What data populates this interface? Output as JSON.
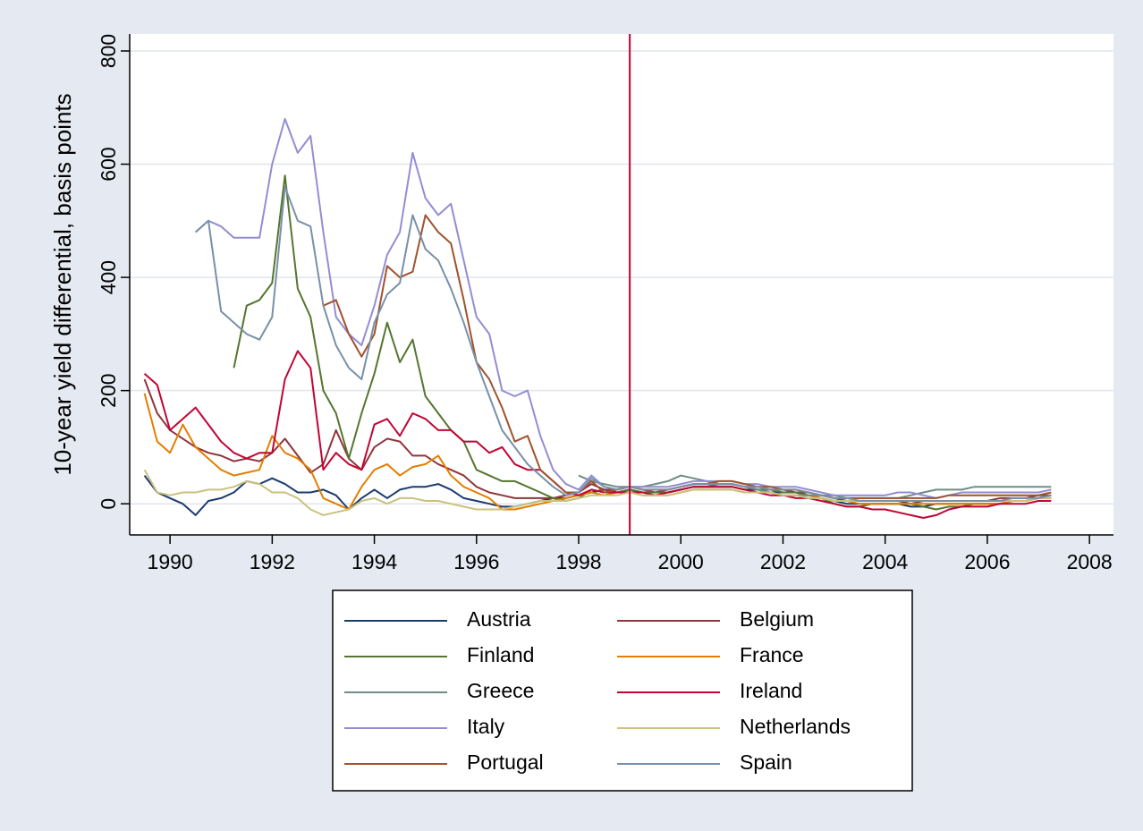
{
  "chart_data": {
    "type": "line",
    "y_label": "10-year yield differential, basis points",
    "x": [
      1989.5,
      1989.75,
      1990.0,
      1990.25,
      1990.5,
      1990.75,
      1991.0,
      1991.25,
      1991.5,
      1991.75,
      1992.0,
      1992.25,
      1992.5,
      1992.75,
      1993.0,
      1993.25,
      1993.5,
      1993.75,
      1994.0,
      1994.25,
      1994.5,
      1994.75,
      1995.0,
      1995.25,
      1995.5,
      1995.75,
      1996.0,
      1996.25,
      1996.5,
      1996.75,
      1997.0,
      1997.25,
      1997.5,
      1997.75,
      1998.0,
      1998.25,
      1998.5,
      1998.75,
      1999.0,
      1999.25,
      1999.5,
      1999.75,
      2000.0,
      2000.25,
      2000.5,
      2000.75,
      2001.0,
      2001.25,
      2001.5,
      2001.75,
      2002.0,
      2002.25,
      2002.5,
      2002.75,
      2003.0,
      2003.25,
      2003.5,
      2003.75,
      2004.0,
      2004.25,
      2004.5,
      2004.75,
      2005.0,
      2005.25,
      2005.5,
      2005.75,
      2006.0,
      2006.25,
      2006.5,
      2006.75,
      2007.0,
      2007.25
    ],
    "series": [
      {
        "name": "Austria",
        "color": "#1a3b6e",
        "values": [
          50,
          20,
          10,
          0,
          -20,
          5,
          10,
          20,
          40,
          35,
          45,
          35,
          20,
          20,
          25,
          15,
          -10,
          10,
          25,
          10,
          25,
          30,
          30,
          35,
          25,
          10,
          5,
          0,
          -5,
          -5,
          0,
          5,
          10,
          10,
          15,
          20,
          25,
          20,
          25,
          20,
          20,
          20,
          25,
          30,
          30,
          30,
          30,
          25,
          25,
          20,
          20,
          20,
          15,
          10,
          5,
          0,
          0,
          0,
          0,
          0,
          -5,
          -5,
          0,
          0,
          0,
          0,
          0,
          0,
          5,
          5,
          10,
          10
        ]
      },
      {
        "name": "Belgium",
        "color": "#90353b",
        "values": [
          220,
          160,
          130,
          115,
          100,
          90,
          85,
          75,
          80,
          75,
          90,
          115,
          85,
          55,
          70,
          130,
          80,
          60,
          100,
          115,
          110,
          85,
          85,
          70,
          60,
          50,
          30,
          20,
          15,
          10,
          10,
          10,
          10,
          15,
          20,
          35,
          25,
          25,
          30,
          25,
          20,
          25,
          30,
          35,
          35,
          35,
          35,
          30,
          30,
          25,
          25,
          20,
          20,
          15,
          10,
          5,
          5,
          5,
          5,
          5,
          0,
          5,
          5,
          5,
          5,
          5,
          5,
          10,
          10,
          10,
          15,
          15
        ]
      },
      {
        "name": "Finland",
        "color": "#55752f",
        "values": [
          null,
          null,
          null,
          null,
          null,
          null,
          null,
          240,
          350,
          360,
          390,
          580,
          380,
          330,
          200,
          160,
          80,
          160,
          230,
          320,
          250,
          290,
          190,
          160,
          130,
          110,
          60,
          50,
          40,
          40,
          30,
          20,
          10,
          5,
          10,
          25,
          20,
          20,
          25,
          20,
          20,
          20,
          25,
          30,
          30,
          35,
          35,
          30,
          25,
          25,
          20,
          20,
          15,
          10,
          0,
          -5,
          -5,
          0,
          0,
          0,
          0,
          -5,
          -10,
          -5,
          -5,
          0,
          0,
          0,
          5,
          5,
          10,
          15
        ]
      },
      {
        "name": "France",
        "color": "#e37e00",
        "values": [
          195,
          110,
          90,
          140,
          100,
          80,
          60,
          50,
          55,
          60,
          120,
          90,
          80,
          60,
          10,
          0,
          -10,
          30,
          60,
          70,
          50,
          65,
          70,
          85,
          50,
          30,
          20,
          10,
          -10,
          -10,
          -5,
          0,
          5,
          10,
          15,
          20,
          15,
          20,
          20,
          15,
          15,
          15,
          20,
          25,
          25,
          25,
          25,
          20,
          20,
          20,
          15,
          15,
          15,
          10,
          5,
          5,
          0,
          0,
          0,
          0,
          0,
          0,
          0,
          0,
          0,
          0,
          0,
          0,
          5,
          5,
          10,
          10
        ]
      },
      {
        "name": "Greece",
        "color": "#6e8e84",
        "values": [
          null,
          null,
          null,
          null,
          null,
          null,
          null,
          null,
          null,
          null,
          null,
          null,
          null,
          null,
          null,
          null,
          null,
          null,
          null,
          null,
          null,
          null,
          null,
          null,
          null,
          null,
          null,
          null,
          null,
          null,
          null,
          null,
          null,
          null,
          50,
          40,
          35,
          30,
          30,
          30,
          35,
          40,
          50,
          45,
          40,
          35,
          35,
          30,
          25,
          20,
          15,
          15,
          15,
          15,
          15,
          10,
          10,
          10,
          10,
          10,
          15,
          20,
          25,
          25,
          25,
          30,
          30,
          30,
          30,
          30,
          30,
          30
        ]
      },
      {
        "name": "Ireland",
        "color": "#c10534",
        "values": [
          230,
          210,
          130,
          150,
          170,
          140,
          110,
          90,
          80,
          90,
          90,
          220,
          270,
          240,
          60,
          90,
          70,
          60,
          140,
          150,
          120,
          160,
          150,
          130,
          130,
          110,
          110,
          90,
          100,
          70,
          60,
          60,
          40,
          20,
          15,
          25,
          20,
          20,
          20,
          20,
          15,
          20,
          25,
          30,
          30,
          30,
          30,
          25,
          20,
          15,
          15,
          10,
          10,
          5,
          0,
          -5,
          -5,
          -10,
          -10,
          -15,
          -20,
          -25,
          -20,
          -10,
          -5,
          -5,
          -5,
          0,
          0,
          0,
          5,
          5
        ]
      },
      {
        "name": "Italy",
        "color": "#938dd2",
        "values": [
          null,
          null,
          null,
          null,
          480,
          500,
          490,
          470,
          470,
          470,
          600,
          680,
          620,
          650,
          480,
          330,
          300,
          280,
          350,
          440,
          480,
          620,
          540,
          510,
          530,
          430,
          330,
          300,
          200,
          190,
          200,
          120,
          60,
          35,
          25,
          50,
          30,
          25,
          30,
          30,
          30,
          30,
          35,
          40,
          40,
          40,
          40,
          35,
          35,
          30,
          30,
          30,
          25,
          20,
          15,
          15,
          15,
          15,
          15,
          20,
          20,
          15,
          10,
          15,
          20,
          20,
          20,
          20,
          20,
          20,
          20,
          25
        ]
      },
      {
        "name": "Netherlands",
        "color": "#cac27e",
        "values": [
          60,
          20,
          15,
          20,
          20,
          25,
          25,
          30,
          40,
          35,
          20,
          20,
          10,
          -10,
          -20,
          -15,
          -10,
          5,
          10,
          0,
          10,
          10,
          5,
          5,
          0,
          -5,
          -10,
          -10,
          -10,
          -5,
          0,
          5,
          5,
          5,
          10,
          15,
          15,
          15,
          20,
          15,
          15,
          15,
          20,
          25,
          25,
          25,
          25,
          20,
          20,
          20,
          15,
          15,
          10,
          10,
          5,
          5,
          5,
          5,
          5,
          5,
          5,
          5,
          5,
          5,
          5,
          5,
          5,
          5,
          5,
          5,
          10,
          10
        ]
      },
      {
        "name": "Portugal",
        "color": "#a0522d",
        "values": [
          null,
          null,
          null,
          null,
          null,
          null,
          null,
          null,
          null,
          null,
          null,
          null,
          null,
          null,
          350,
          360,
          300,
          260,
          300,
          420,
          400,
          410,
          510,
          480,
          460,
          360,
          250,
          220,
          170,
          110,
          120,
          60,
          40,
          20,
          20,
          40,
          20,
          25,
          30,
          25,
          25,
          25,
          30,
          35,
          35,
          40,
          40,
          35,
          30,
          30,
          25,
          25,
          20,
          15,
          10,
          10,
          10,
          10,
          10,
          10,
          10,
          10,
          10,
          15,
          15,
          15,
          15,
          15,
          15,
          15,
          15,
          20
        ]
      },
      {
        "name": "Spain",
        "color": "#7890a8",
        "values": [
          null,
          null,
          null,
          null,
          480,
          500,
          340,
          320,
          300,
          290,
          330,
          560,
          500,
          490,
          350,
          280,
          240,
          220,
          320,
          370,
          390,
          510,
          450,
          430,
          380,
          320,
          250,
          190,
          130,
          100,
          70,
          50,
          30,
          15,
          20,
          45,
          30,
          25,
          30,
          25,
          25,
          25,
          30,
          35,
          35,
          35,
          35,
          30,
          30,
          25,
          25,
          25,
          20,
          15,
          10,
          10,
          5,
          5,
          5,
          5,
          5,
          5,
          5,
          5,
          5,
          5,
          5,
          5,
          10,
          10,
          10,
          15
        ]
      }
    ],
    "xlim": [
      1989.21,
      2008.47
    ],
    "ylim": [
      -55,
      830
    ],
    "xticks": [
      1990,
      1992,
      1994,
      1996,
      1998,
      2000,
      2002,
      2004,
      2006,
      2008
    ],
    "yticks": [
      0,
      200,
      400,
      600,
      800
    ],
    "grid": true,
    "vline_x": 1999,
    "vline_color": "#c00030",
    "legend_position": "bottom"
  }
}
